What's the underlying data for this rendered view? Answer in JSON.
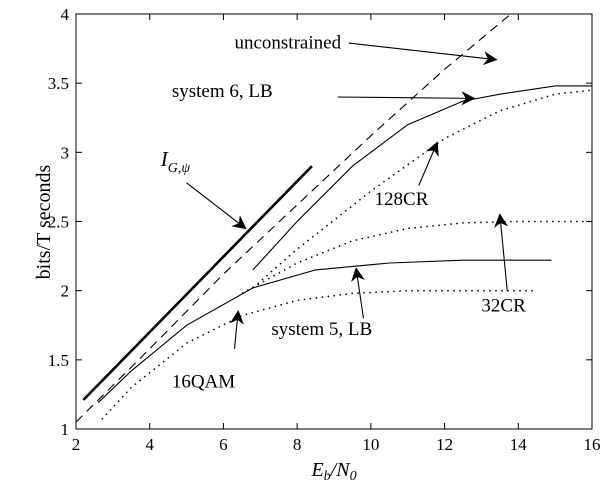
{
  "chart_data": {
    "type": "line",
    "title": "",
    "xlabel": "E_b/N_0",
    "xlabel_main": "E",
    "xlabel_sub1": "b",
    "xlabel_slash": "/N",
    "xlabel_sub2": "0",
    "ylabel": "bits/T seconds",
    "xlim": [
      2,
      16
    ],
    "ylim": [
      1,
      4
    ],
    "xticks": [
      2,
      4,
      6,
      8,
      10,
      12,
      14,
      16
    ],
    "yticks": [
      1,
      1.5,
      2,
      2.5,
      3,
      3.5,
      4
    ],
    "xtick_labels": [
      "2",
      "4",
      "6",
      "8",
      "10",
      "12",
      "14",
      "16"
    ],
    "ytick_labels": [
      "1",
      "1.5",
      "2",
      "2.5",
      "3",
      "3.5",
      "4"
    ],
    "grid": false,
    "series": [
      {
        "name": "I_G,psi",
        "style": "solid-thick",
        "x": [
          2.2,
          8.4
        ],
        "y": [
          1.21,
          2.9
        ]
      },
      {
        "name": "unconstrained",
        "style": "dashed",
        "x": [
          2.0,
          4.0,
          6.0,
          8.0,
          10.0,
          12.0,
          13.8
        ],
        "y": [
          1.05,
          1.58,
          2.12,
          2.62,
          3.12,
          3.6,
          4.0
        ]
      },
      {
        "name": "system 6, LB",
        "style": "solid",
        "x": [
          6.8,
          8.0,
          9.5,
          11.0,
          12.5,
          13.5,
          15.0,
          16.0
        ],
        "y": [
          2.15,
          2.5,
          2.9,
          3.2,
          3.37,
          3.42,
          3.48,
          3.48
        ]
      },
      {
        "name": "128CR",
        "style": "dotted",
        "x": [
          6.8,
          8.0,
          10.0,
          12.0,
          13.5,
          15.0,
          16.0
        ],
        "y": [
          2.02,
          2.3,
          2.72,
          3.1,
          3.3,
          3.42,
          3.45
        ]
      },
      {
        "name": "system 5, LB",
        "style": "solid",
        "x": [
          2.6,
          3.5,
          5.0,
          6.8,
          8.5,
          10.5,
          12.5,
          14.9
        ],
        "y": [
          1.19,
          1.42,
          1.75,
          2.02,
          2.15,
          2.2,
          2.22,
          2.22
        ]
      },
      {
        "name": "32CR",
        "style": "dotted",
        "x": [
          6.5,
          8.0,
          9.5,
          11.0,
          12.5,
          14.0,
          16.0
        ],
        "y": [
          1.98,
          2.2,
          2.36,
          2.45,
          2.49,
          2.5,
          2.5
        ]
      },
      {
        "name": "16QAM",
        "style": "dotted",
        "x": [
          2.7,
          3.5,
          5.0,
          6.5,
          8.0,
          9.5,
          11.0,
          12.5,
          14.5
        ],
        "y": [
          1.07,
          1.3,
          1.62,
          1.82,
          1.93,
          1.98,
          2.0,
          2.0,
          2.0
        ]
      }
    ],
    "annotations": [
      {
        "id": "unconstrained",
        "text": "unconstrained",
        "text_x": 6.3,
        "text_y": 3.75,
        "arrow_from": [
          9.4,
          3.79
        ],
        "arrow_to": [
          13.4,
          3.67
        ]
      },
      {
        "id": "system6",
        "text": "system 6, LB",
        "text_x": 4.6,
        "text_y": 3.4,
        "arrow_from": [
          9.1,
          3.4
        ],
        "arrow_to": [
          12.8,
          3.39
        ]
      },
      {
        "id": "igpsi",
        "text_main": "I",
        "text_sub": "G,ψ",
        "text_x": 4.3,
        "text_y": 2.9,
        "arrow_from": [
          5.0,
          2.78
        ],
        "arrow_to": [
          6.6,
          2.45
        ]
      },
      {
        "id": "128cr",
        "text": "128CR",
        "text_x": 10.1,
        "text_y": 2.62,
        "arrow_from": [
          11.3,
          2.76
        ],
        "arrow_to": [
          11.8,
          3.07
        ]
      },
      {
        "id": "32cr",
        "text": "32CR",
        "text_x": 13.0,
        "text_y": 1.85,
        "arrow_from": [
          13.7,
          2.0
        ],
        "arrow_to": [
          13.5,
          2.55
        ]
      },
      {
        "id": "system5",
        "text": "system 5, LB",
        "text_x": 7.3,
        "text_y": 1.68,
        "arrow_from": [
          9.8,
          1.8
        ],
        "arrow_to": [
          9.6,
          2.16
        ]
      },
      {
        "id": "16qam",
        "text": "16QAM",
        "text_x": 4.6,
        "text_y": 1.3,
        "arrow_from": [
          6.3,
          1.58
        ],
        "arrow_to": [
          6.4,
          1.85
        ]
      }
    ]
  }
}
